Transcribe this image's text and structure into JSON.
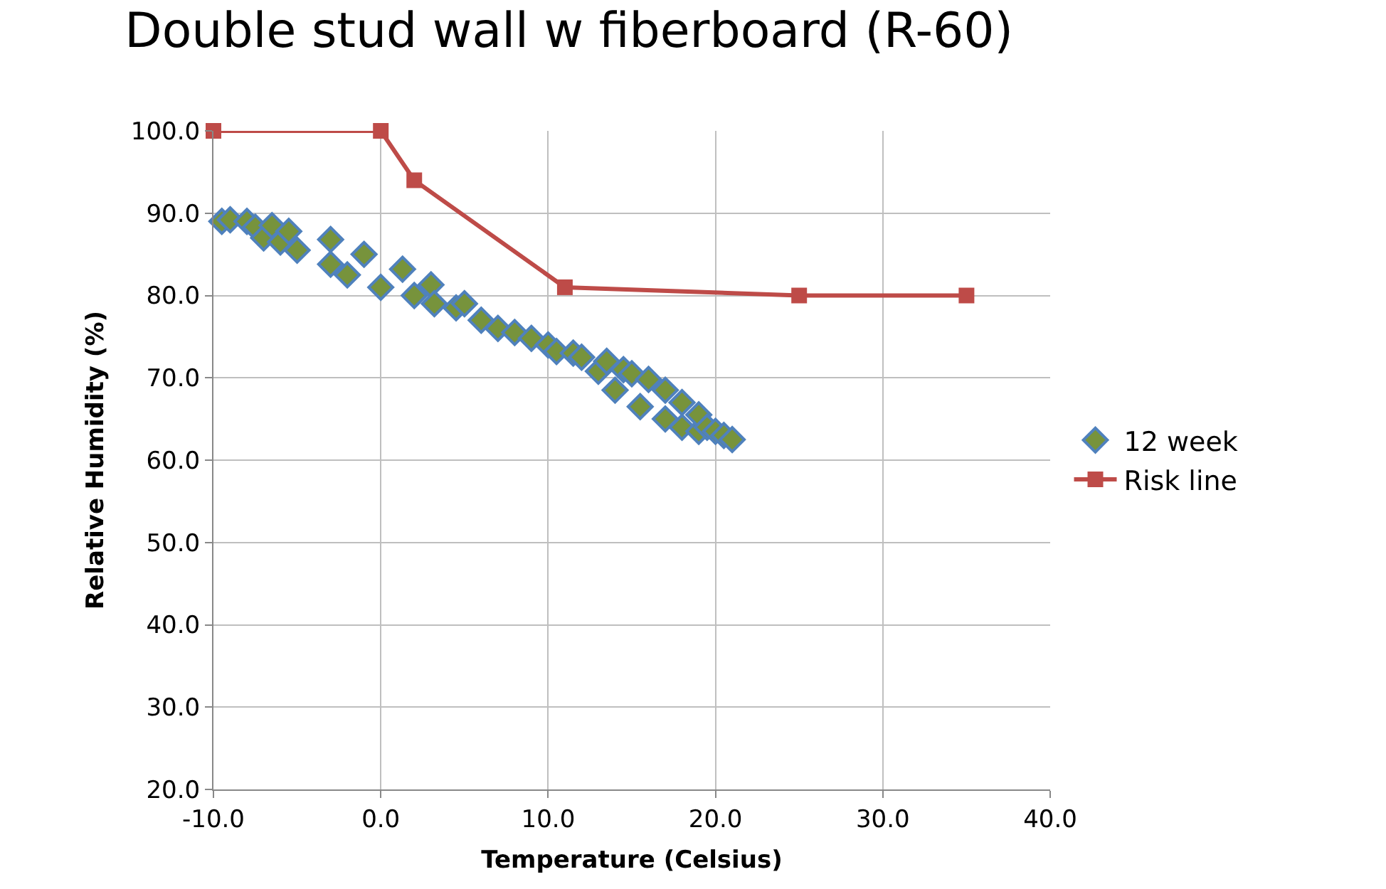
{
  "chart_data": {
    "type": "scatter",
    "title": "Double stud wall w fiberboard (R-60)",
    "xlabel": "Temperature (Celsius)",
    "ylabel": "Relative Humidity (%)",
    "xlim": [
      -10,
      40
    ],
    "xticks": [
      {
        "value": -10,
        "label": "-10.0"
      },
      {
        "value": 0,
        "label": "0.0"
      },
      {
        "value": 10,
        "label": "10.0"
      },
      {
        "value": 20,
        "label": "20.0"
      },
      {
        "value": 30,
        "label": "30.0"
      },
      {
        "value": 40,
        "label": "40.0"
      }
    ],
    "ylim": [
      20,
      100
    ],
    "yticks": [
      {
        "value": 20,
        "label": "20.0"
      },
      {
        "value": 30,
        "label": "30.0"
      },
      {
        "value": 40,
        "label": "40.0"
      },
      {
        "value": 50,
        "label": "50.0"
      },
      {
        "value": 60,
        "label": "60.0"
      },
      {
        "value": 70,
        "label": "70.0"
      },
      {
        "value": 80,
        "label": "80.0"
      },
      {
        "value": 90,
        "label": "90.0"
      },
      {
        "value": 100,
        "label": "100.0"
      }
    ],
    "grid": true,
    "legend": "right",
    "series": [
      {
        "name": "12 week",
        "type": "scatter",
        "marker": "diamond",
        "color": "#77933c",
        "x": [
          -9.5,
          -9,
          -8,
          -7.5,
          -7,
          -6.5,
          -6,
          -5.5,
          -5,
          -3,
          -3,
          -2,
          -1,
          0,
          1.3,
          2,
          3,
          3.2,
          4.5,
          5,
          6,
          7,
          8,
          9,
          10,
          10.5,
          11.5,
          12,
          13,
          13.5,
          14,
          14.5,
          15,
          15.5,
          16,
          17,
          17,
          18,
          18,
          19,
          19,
          19.5,
          20,
          20.5,
          21
        ],
        "values": [
          89,
          89.2,
          89,
          88.3,
          87,
          88.5,
          86.5,
          87.8,
          85.5,
          86.8,
          83.8,
          82.5,
          85,
          81,
          83.2,
          80,
          81.3,
          79,
          78.5,
          79,
          77,
          76,
          75.5,
          74.8,
          74,
          73.2,
          73,
          72.5,
          70.8,
          72,
          68.5,
          71,
          70.5,
          66.5,
          69.8,
          65,
          68.5,
          67,
          64,
          63.5,
          65.5,
          64,
          63.5,
          63,
          62.5
        ]
      },
      {
        "name": "Risk line",
        "type": "line",
        "marker": "square",
        "color": "#be4b48",
        "x": [
          -10,
          0,
          2,
          11,
          25,
          35
        ],
        "values": [
          100,
          100,
          94,
          81,
          80,
          80
        ]
      }
    ]
  }
}
